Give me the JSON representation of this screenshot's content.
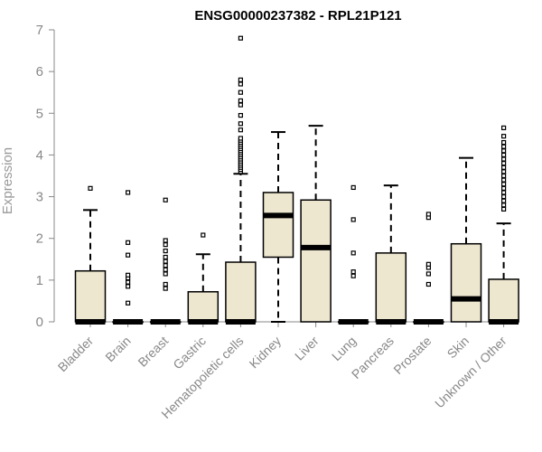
{
  "chart_data": {
    "type": "boxplot",
    "title": "ENSG00000237382 - RPL21P121",
    "xlabel": "",
    "ylabel": "Expression",
    "ylim": [
      0,
      7
    ],
    "yticks": [
      "0",
      "1",
      "2",
      "3",
      "4",
      "5",
      "6",
      "7"
    ],
    "grid": false,
    "legend": "none",
    "box_fill": "#ede7d0",
    "box_stroke": "#000000",
    "categories": [
      "Bladder",
      "Brain",
      "Breast",
      "Gastric",
      "Hematopoietic cells",
      "Kidney",
      "Liver",
      "Lung",
      "Pancreas",
      "Prostate",
      "Skin",
      "Unknown / Other"
    ],
    "boxes": [
      {
        "category": "Bladder",
        "min": 0,
        "q1": 0,
        "median": 0,
        "q3": 1.22,
        "max": 2.68,
        "outliers": [
          3.2
        ]
      },
      {
        "category": "Brain",
        "min": 0,
        "q1": 0,
        "median": 0,
        "q3": 0,
        "max": 0,
        "outliers": [
          0.45,
          0.85,
          0.95,
          1.05,
          1.12,
          1.6,
          1.9,
          3.1
        ]
      },
      {
        "category": "Breast",
        "min": 0,
        "q1": 0,
        "median": 0,
        "q3": 0,
        "max": 0,
        "outliers": [
          0.8,
          0.9,
          1.15,
          1.25,
          1.35,
          1.45,
          1.55,
          1.7,
          1.85,
          1.95,
          2.92
        ]
      },
      {
        "category": "Gastric",
        "min": 0,
        "q1": 0,
        "median": 0,
        "q3": 0.72,
        "max": 1.62,
        "outliers": [
          2.08
        ]
      },
      {
        "category": "Hematopoietic cells",
        "min": 0,
        "q1": 0,
        "median": 0,
        "q3": 1.43,
        "max": 3.55,
        "outliers": [
          3.6,
          3.65,
          3.7,
          3.75,
          3.8,
          3.85,
          3.9,
          3.95,
          4.0,
          4.05,
          4.1,
          4.15,
          4.2,
          4.25,
          4.3,
          4.35,
          4.4,
          4.6,
          4.75,
          4.95,
          5.2,
          5.3,
          5.5,
          5.7,
          5.8,
          6.8
        ]
      },
      {
        "category": "Kidney",
        "min": 0,
        "q1": 1.55,
        "median": 2.55,
        "q3": 3.1,
        "max": 4.55,
        "outliers": []
      },
      {
        "category": "Liver",
        "min": 0,
        "q1": 0,
        "median": 1.78,
        "q3": 2.92,
        "max": 4.7,
        "outliers": []
      },
      {
        "category": "Lung",
        "min": 0,
        "q1": 0,
        "median": 0,
        "q3": 0,
        "max": 0,
        "outliers": [
          1.1,
          1.2,
          1.65,
          2.45,
          3.22
        ]
      },
      {
        "category": "Pancreas",
        "min": 0,
        "q1": 0,
        "median": 0,
        "q3": 1.65,
        "max": 3.27,
        "outliers": []
      },
      {
        "category": "Prostate",
        "min": 0,
        "q1": 0,
        "median": 0,
        "q3": 0,
        "max": 0,
        "outliers": [
          0.9,
          1.15,
          1.3,
          1.38,
          2.5,
          2.58
        ]
      },
      {
        "category": "Skin",
        "min": 0,
        "q1": 0,
        "median": 0.55,
        "q3": 1.87,
        "max": 3.93,
        "outliers": []
      },
      {
        "category": "Unknown / Other",
        "min": 0,
        "q1": 0,
        "median": 0,
        "q3": 1.02,
        "max": 2.36,
        "outliers": [
          2.7,
          2.8,
          2.9,
          3.0,
          3.1,
          3.2,
          3.3,
          3.4,
          3.5,
          3.6,
          3.7,
          3.8,
          3.9,
          4.0,
          4.1,
          4.2,
          4.3,
          4.45,
          4.65
        ]
      }
    ]
  }
}
